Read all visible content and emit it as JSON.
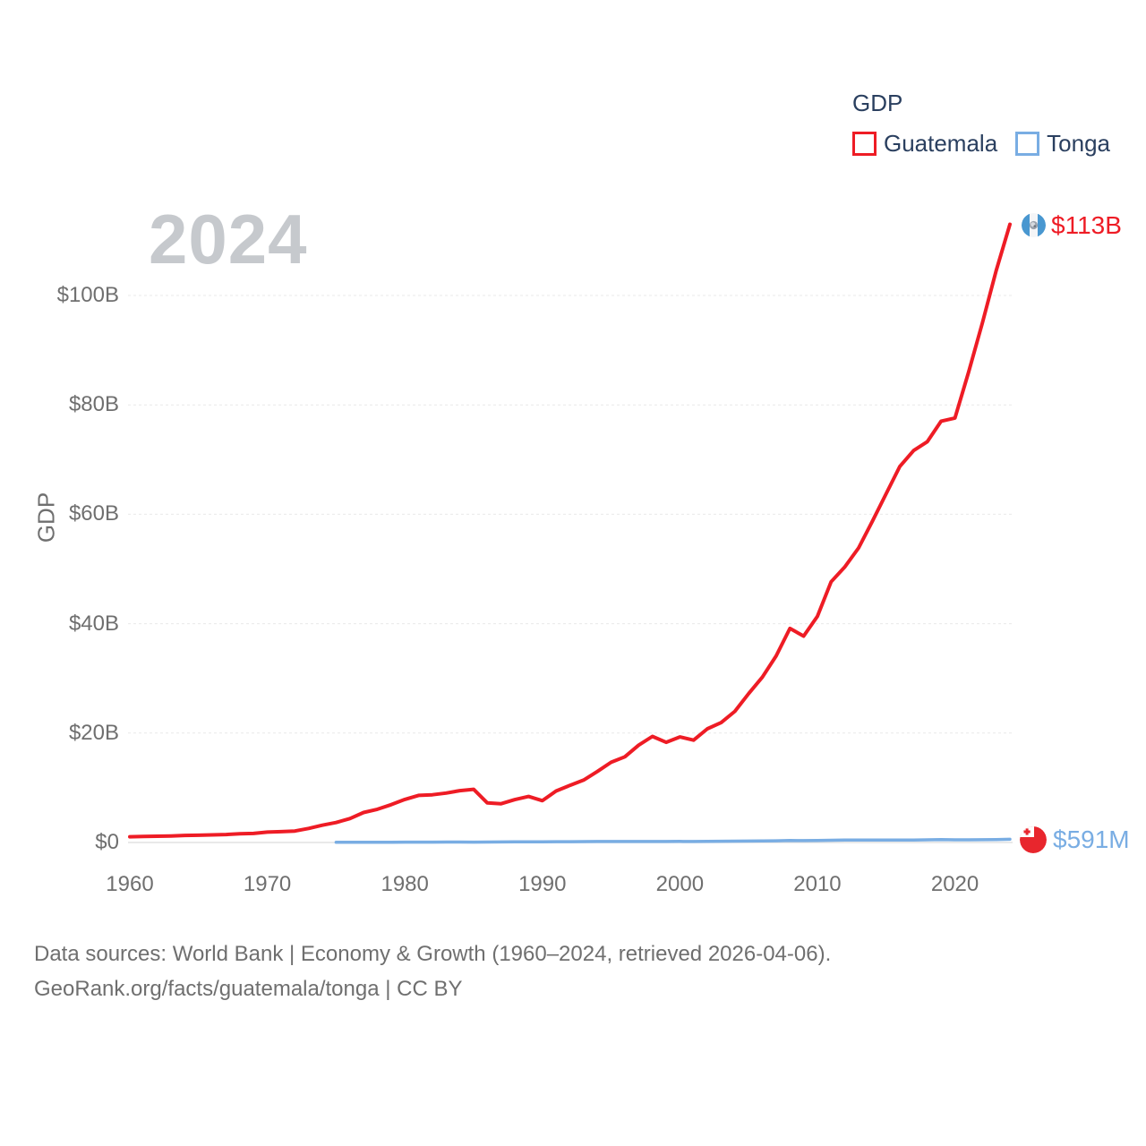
{
  "watermark": "2024",
  "legend": {
    "title": "GDP",
    "items": [
      {
        "label": "Guatemala",
        "color": "#EE1C25"
      },
      {
        "label": "Tonga",
        "color": "#79ADE3"
      }
    ]
  },
  "theme": {
    "background": "#FFFFFF",
    "text_dark": "#2A3F5F",
    "text_gray": "#6F6F6F",
    "grid_line": "#E9E9E9",
    "grid_zero_line": "#E2E2E2",
    "watermark_gray": "#C6C9CD"
  },
  "chart_data": {
    "type": "line",
    "title": "GDP",
    "xlabel": "",
    "ylabel": "GDP",
    "x_range": [
      1960,
      2024
    ],
    "ylim_billion_usd": [
      0,
      113
    ],
    "grid": "horizontal-only",
    "legend_position": "top-right",
    "x_ticks": [
      1960,
      1970,
      1980,
      1990,
      2000,
      2010,
      2020
    ],
    "y_gridlines": [
      {
        "value": 0,
        "label": "$0"
      },
      {
        "value": 20,
        "label": "$20B"
      },
      {
        "value": 40,
        "label": "$40B"
      },
      {
        "value": 60,
        "label": "$60B"
      },
      {
        "value": 80,
        "label": "$80B"
      },
      {
        "value": 100,
        "label": "$100B"
      }
    ],
    "series": [
      {
        "name": "Guatemala",
        "color": "#EE1C25",
        "end_label": "$113B",
        "flag_icon": "guatemala-flag-icon",
        "years": [
          1960,
          1961,
          1962,
          1963,
          1964,
          1965,
          1966,
          1967,
          1968,
          1969,
          1970,
          1971,
          1972,
          1973,
          1974,
          1975,
          1976,
          1977,
          1978,
          1979,
          1980,
          1981,
          1982,
          1983,
          1984,
          1985,
          1986,
          1987,
          1988,
          1989,
          1990,
          1991,
          1992,
          1993,
          1994,
          1995,
          1996,
          1997,
          1998,
          1999,
          2000,
          2001,
          2002,
          2003,
          2004,
          2005,
          2006,
          2007,
          2008,
          2009,
          2010,
          2011,
          2012,
          2013,
          2014,
          2015,
          2016,
          2017,
          2018,
          2019,
          2020,
          2021,
          2022,
          2023,
          2024
        ],
        "values_billion_usd": [
          1.04,
          1.09,
          1.14,
          1.2,
          1.29,
          1.33,
          1.39,
          1.45,
          1.58,
          1.66,
          1.9,
          1.98,
          2.1,
          2.57,
          3.16,
          3.65,
          4.37,
          5.48,
          6.07,
          6.9,
          7.88,
          8.61,
          8.72,
          9.04,
          9.47,
          9.72,
          7.23,
          7.08,
          7.84,
          8.41,
          7.65,
          9.41,
          10.44,
          11.4,
          12.98,
          14.66,
          15.67,
          17.79,
          19.4,
          18.32,
          19.29,
          18.7,
          20.78,
          21.92,
          23.97,
          27.21,
          30.23,
          34.11,
          39.14,
          37.73,
          41.34,
          47.66,
          50.39,
          53.85,
          58.72,
          63.77,
          68.76,
          71.65,
          73.28,
          77.02,
          77.6,
          86.0,
          95.0,
          104.5,
          113.0
        ]
      },
      {
        "name": "Tonga",
        "color": "#79ADE3",
        "end_label": "$591M",
        "flag_icon": "tonga-flag-icon",
        "years": [
          1975,
          1976,
          1977,
          1978,
          1979,
          1980,
          1981,
          1982,
          1983,
          1984,
          1985,
          1986,
          1987,
          1988,
          1989,
          1990,
          1991,
          1992,
          1993,
          1994,
          1995,
          1996,
          1997,
          1998,
          1999,
          2000,
          2001,
          2002,
          2003,
          2004,
          2005,
          2006,
          2007,
          2008,
          2009,
          2010,
          2011,
          2012,
          2013,
          2014,
          2015,
          2016,
          2017,
          2018,
          2019,
          2020,
          2021,
          2022,
          2023,
          2024
        ],
        "values_billion_usd": [
          0.036,
          0.039,
          0.046,
          0.053,
          0.056,
          0.06,
          0.065,
          0.07,
          0.077,
          0.08,
          0.066,
          0.084,
          0.096,
          0.108,
          0.112,
          0.136,
          0.144,
          0.152,
          0.16,
          0.172,
          0.18,
          0.186,
          0.184,
          0.174,
          0.175,
          0.189,
          0.186,
          0.195,
          0.222,
          0.244,
          0.266,
          0.288,
          0.313,
          0.352,
          0.336,
          0.369,
          0.412,
          0.458,
          0.449,
          0.443,
          0.435,
          0.442,
          0.458,
          0.49,
          0.519,
          0.491,
          0.488,
          0.5,
          0.545,
          0.591
        ]
      }
    ]
  },
  "footer": {
    "line1": "Data sources: World Bank | Economy & Growth (1960–2024, retrieved 2026-04-06).",
    "line2": "GeoRank.org/facts/guatemala/tonga | CC BY"
  }
}
